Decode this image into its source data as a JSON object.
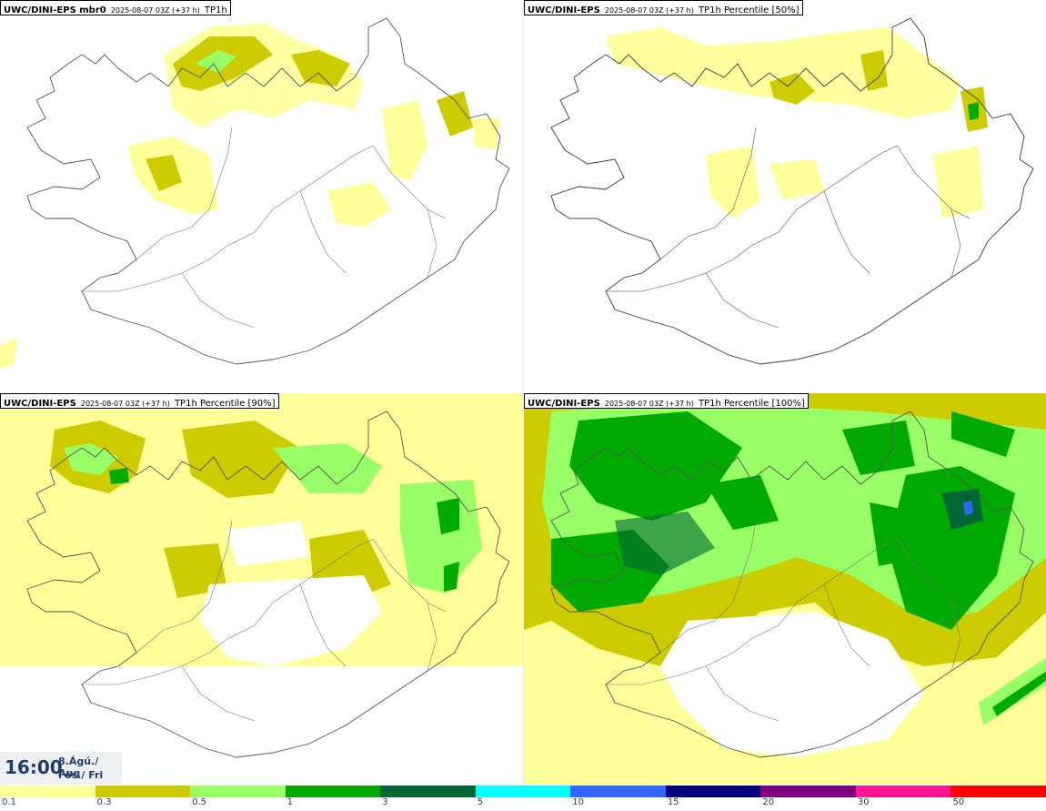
{
  "panels": [
    {
      "model": "UWC/DINI-EPS mbr0",
      "run": "2025-08-07 03Z (+37 h)",
      "param": "TP1h"
    },
    {
      "model": "UWC/DINI-EPS",
      "run": "2025-08-07 03Z (+37 h)",
      "param": "TP1h Percentile [50%]"
    },
    {
      "model": "UWC/DINI-EPS",
      "run": "2025-08-07 03Z (+37 h)",
      "param": "TP1h Percentile [90%]"
    },
    {
      "model": "UWC/DINI-EPS",
      "run": "2025-08-07 03Z (+37 h)",
      "param": "TP1h Percentile [100%]"
    }
  ],
  "valid_time": {
    "time": "16:00",
    "date_line": "8.Ágú./ Aug",
    "day_line": "Fös./ Fri"
  },
  "colorbar": {
    "colors": [
      "#ffff99",
      "#cccc00",
      "#99ff66",
      "#00aa00",
      "#006633",
      "#00ffff",
      "#3366ff",
      "#000080",
      "#800080",
      "#ff1493",
      "#ff0000"
    ],
    "labels": [
      "0.1",
      "0.3",
      "0.5",
      "1",
      "3",
      "5",
      "10",
      "15",
      "20",
      "30",
      "50"
    ]
  }
}
